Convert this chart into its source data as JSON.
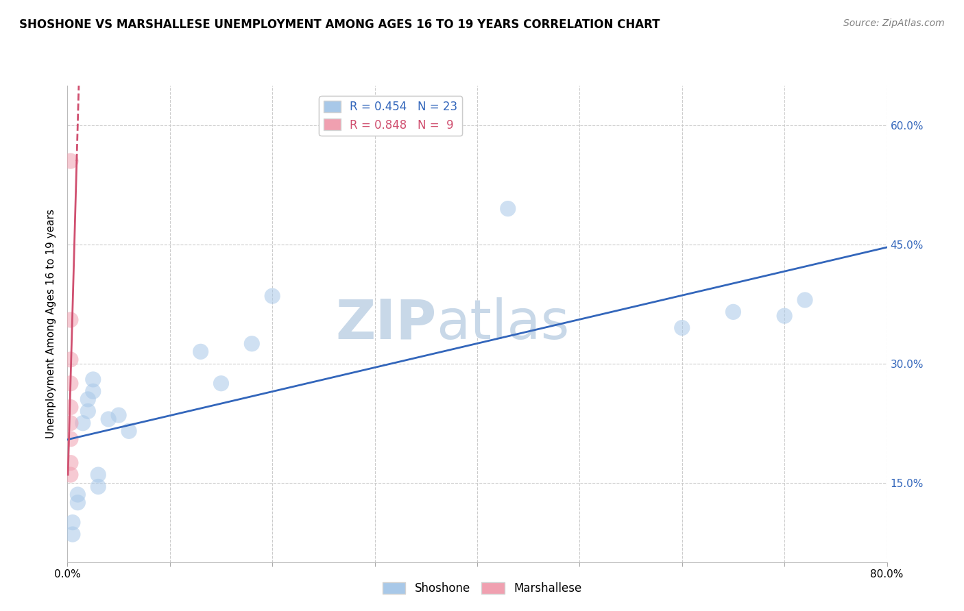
{
  "title": "SHOSHONE VS MARSHALLESE UNEMPLOYMENT AMONG AGES 16 TO 19 YEARS CORRELATION CHART",
  "source_text": "Source: ZipAtlas.com",
  "ylabel": "Unemployment Among Ages 16 to 19 years",
  "xlim": [
    0.0,
    0.8
  ],
  "ylim": [
    0.05,
    0.65
  ],
  "xticks": [
    0.0,
    0.1,
    0.2,
    0.3,
    0.4,
    0.5,
    0.6,
    0.7,
    0.8
  ],
  "xticklabels": [
    "0.0%",
    "",
    "",
    "",
    "",
    "",
    "",
    "",
    "80.0%"
  ],
  "ytick_positions": [
    0.15,
    0.3,
    0.45,
    0.6
  ],
  "yticklabels": [
    "15.0%",
    "30.0%",
    "45.0%",
    "60.0%"
  ],
  "shoshone_x": [
    0.005,
    0.005,
    0.01,
    0.01,
    0.015,
    0.02,
    0.02,
    0.025,
    0.025,
    0.03,
    0.03,
    0.04,
    0.05,
    0.06,
    0.13,
    0.15,
    0.18,
    0.2,
    0.43,
    0.6,
    0.65,
    0.7,
    0.72
  ],
  "shoshone_y": [
    0.1,
    0.085,
    0.125,
    0.135,
    0.225,
    0.24,
    0.255,
    0.265,
    0.28,
    0.145,
    0.16,
    0.23,
    0.235,
    0.215,
    0.315,
    0.275,
    0.325,
    0.385,
    0.495,
    0.345,
    0.365,
    0.36,
    0.38
  ],
  "marshallese_x": [
    0.003,
    0.003,
    0.003,
    0.003,
    0.003,
    0.003,
    0.003,
    0.003,
    0.003
  ],
  "marshallese_y": [
    0.555,
    0.355,
    0.305,
    0.275,
    0.245,
    0.225,
    0.205,
    0.175,
    0.16
  ],
  "shoshone_R": "0.454",
  "shoshone_N": "23",
  "marshallese_R": "0.848",
  "marshallese_N": "9",
  "shoshone_color": "#A8C8E8",
  "marshallese_color": "#F0A0B0",
  "shoshone_line_color": "#3366BB",
  "marshallese_line_color": "#D05070",
  "watermark_left": "ZIP",
  "watermark_right": "atlas",
  "watermark_color": "#C8D8E8",
  "background_color": "#FFFFFF",
  "grid_color": "#CCCCCC"
}
